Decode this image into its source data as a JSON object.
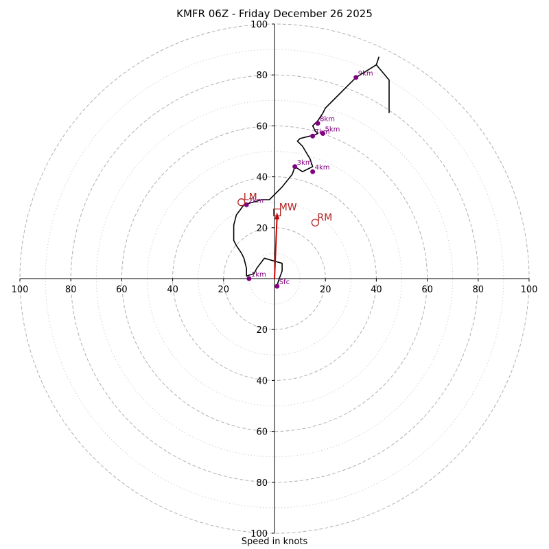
{
  "chart_data": {
    "type": "hodograph",
    "title": "KMFR 06Z - Friday December 26 2025",
    "xlabel": "Speed in knots",
    "units": "knots",
    "max_speed": 100,
    "ring_major": [
      20,
      40,
      60,
      80,
      100
    ],
    "ring_minor": [
      10,
      30,
      50,
      70,
      90
    ],
    "tick_values": [
      20,
      40,
      60,
      80,
      100
    ],
    "colors": {
      "trace": "#000000",
      "markers": "#800080",
      "motion": "#b22222",
      "mean_wind_arrow": "#cc0000",
      "major_ring": "#b0b0b0",
      "minor_ring": "#d3d3d3"
    },
    "trace": [
      [
        1,
        -3
      ],
      [
        1.5,
        -1
      ],
      [
        3,
        3
      ],
      [
        3,
        6
      ],
      [
        -4,
        8
      ],
      [
        -7,
        4
      ],
      [
        -8,
        2
      ],
      [
        -11,
        1
      ],
      [
        -11,
        4
      ],
      [
        -12,
        8
      ],
      [
        -13,
        10
      ],
      [
        -15,
        13
      ],
      [
        -16,
        15
      ],
      [
        -16,
        21
      ],
      [
        -15,
        25
      ],
      [
        -12,
        29
      ],
      [
        -5,
        31
      ],
      [
        -2,
        31
      ],
      [
        3,
        36
      ],
      [
        7,
        41
      ],
      [
        8,
        44
      ],
      [
        11,
        42
      ],
      [
        13,
        43
      ],
      [
        15,
        44
      ],
      [
        14,
        47
      ],
      [
        11,
        52
      ],
      [
        9,
        54
      ],
      [
        10,
        55
      ],
      [
        14,
        56
      ],
      [
        15,
        56
      ],
      [
        17,
        57
      ],
      [
        16,
        58
      ],
      [
        15,
        60
      ],
      [
        17,
        62
      ],
      [
        19,
        65
      ],
      [
        20,
        67
      ],
      [
        22,
        69
      ],
      [
        32,
        79
      ],
      [
        40,
        84
      ],
      [
        41,
        87
      ],
      [
        40,
        84
      ],
      [
        45,
        78
      ],
      [
        45,
        65
      ]
    ],
    "markers": [
      {
        "label": "Sfc",
        "u": 1,
        "v": -3
      },
      {
        "label": "1km",
        "u": -10,
        "v": 0
      },
      {
        "label": "2km",
        "u": -11,
        "v": 29
      },
      {
        "label": "3km",
        "u": 8,
        "v": 44
      },
      {
        "label": "4km",
        "u": 15,
        "v": 42
      },
      {
        "label": "5km",
        "u": 19,
        "v": 57
      },
      {
        "label": "7km",
        "u": 15,
        "v": 56
      },
      {
        "label": "8km",
        "u": 17,
        "v": 61
      },
      {
        "label": "9km",
        "u": 32,
        "v": 79
      }
    ],
    "storm_motion": [
      {
        "label": "LM",
        "u": -13,
        "v": 30,
        "marker": "circle"
      },
      {
        "label": "RM",
        "u": 16,
        "v": 22,
        "marker": "circle"
      },
      {
        "label": "MW",
        "u": 1,
        "v": 26,
        "marker": "square"
      }
    ],
    "mean_wind_arrow": {
      "from": [
        0,
        0
      ],
      "to": [
        1,
        26
      ]
    }
  }
}
